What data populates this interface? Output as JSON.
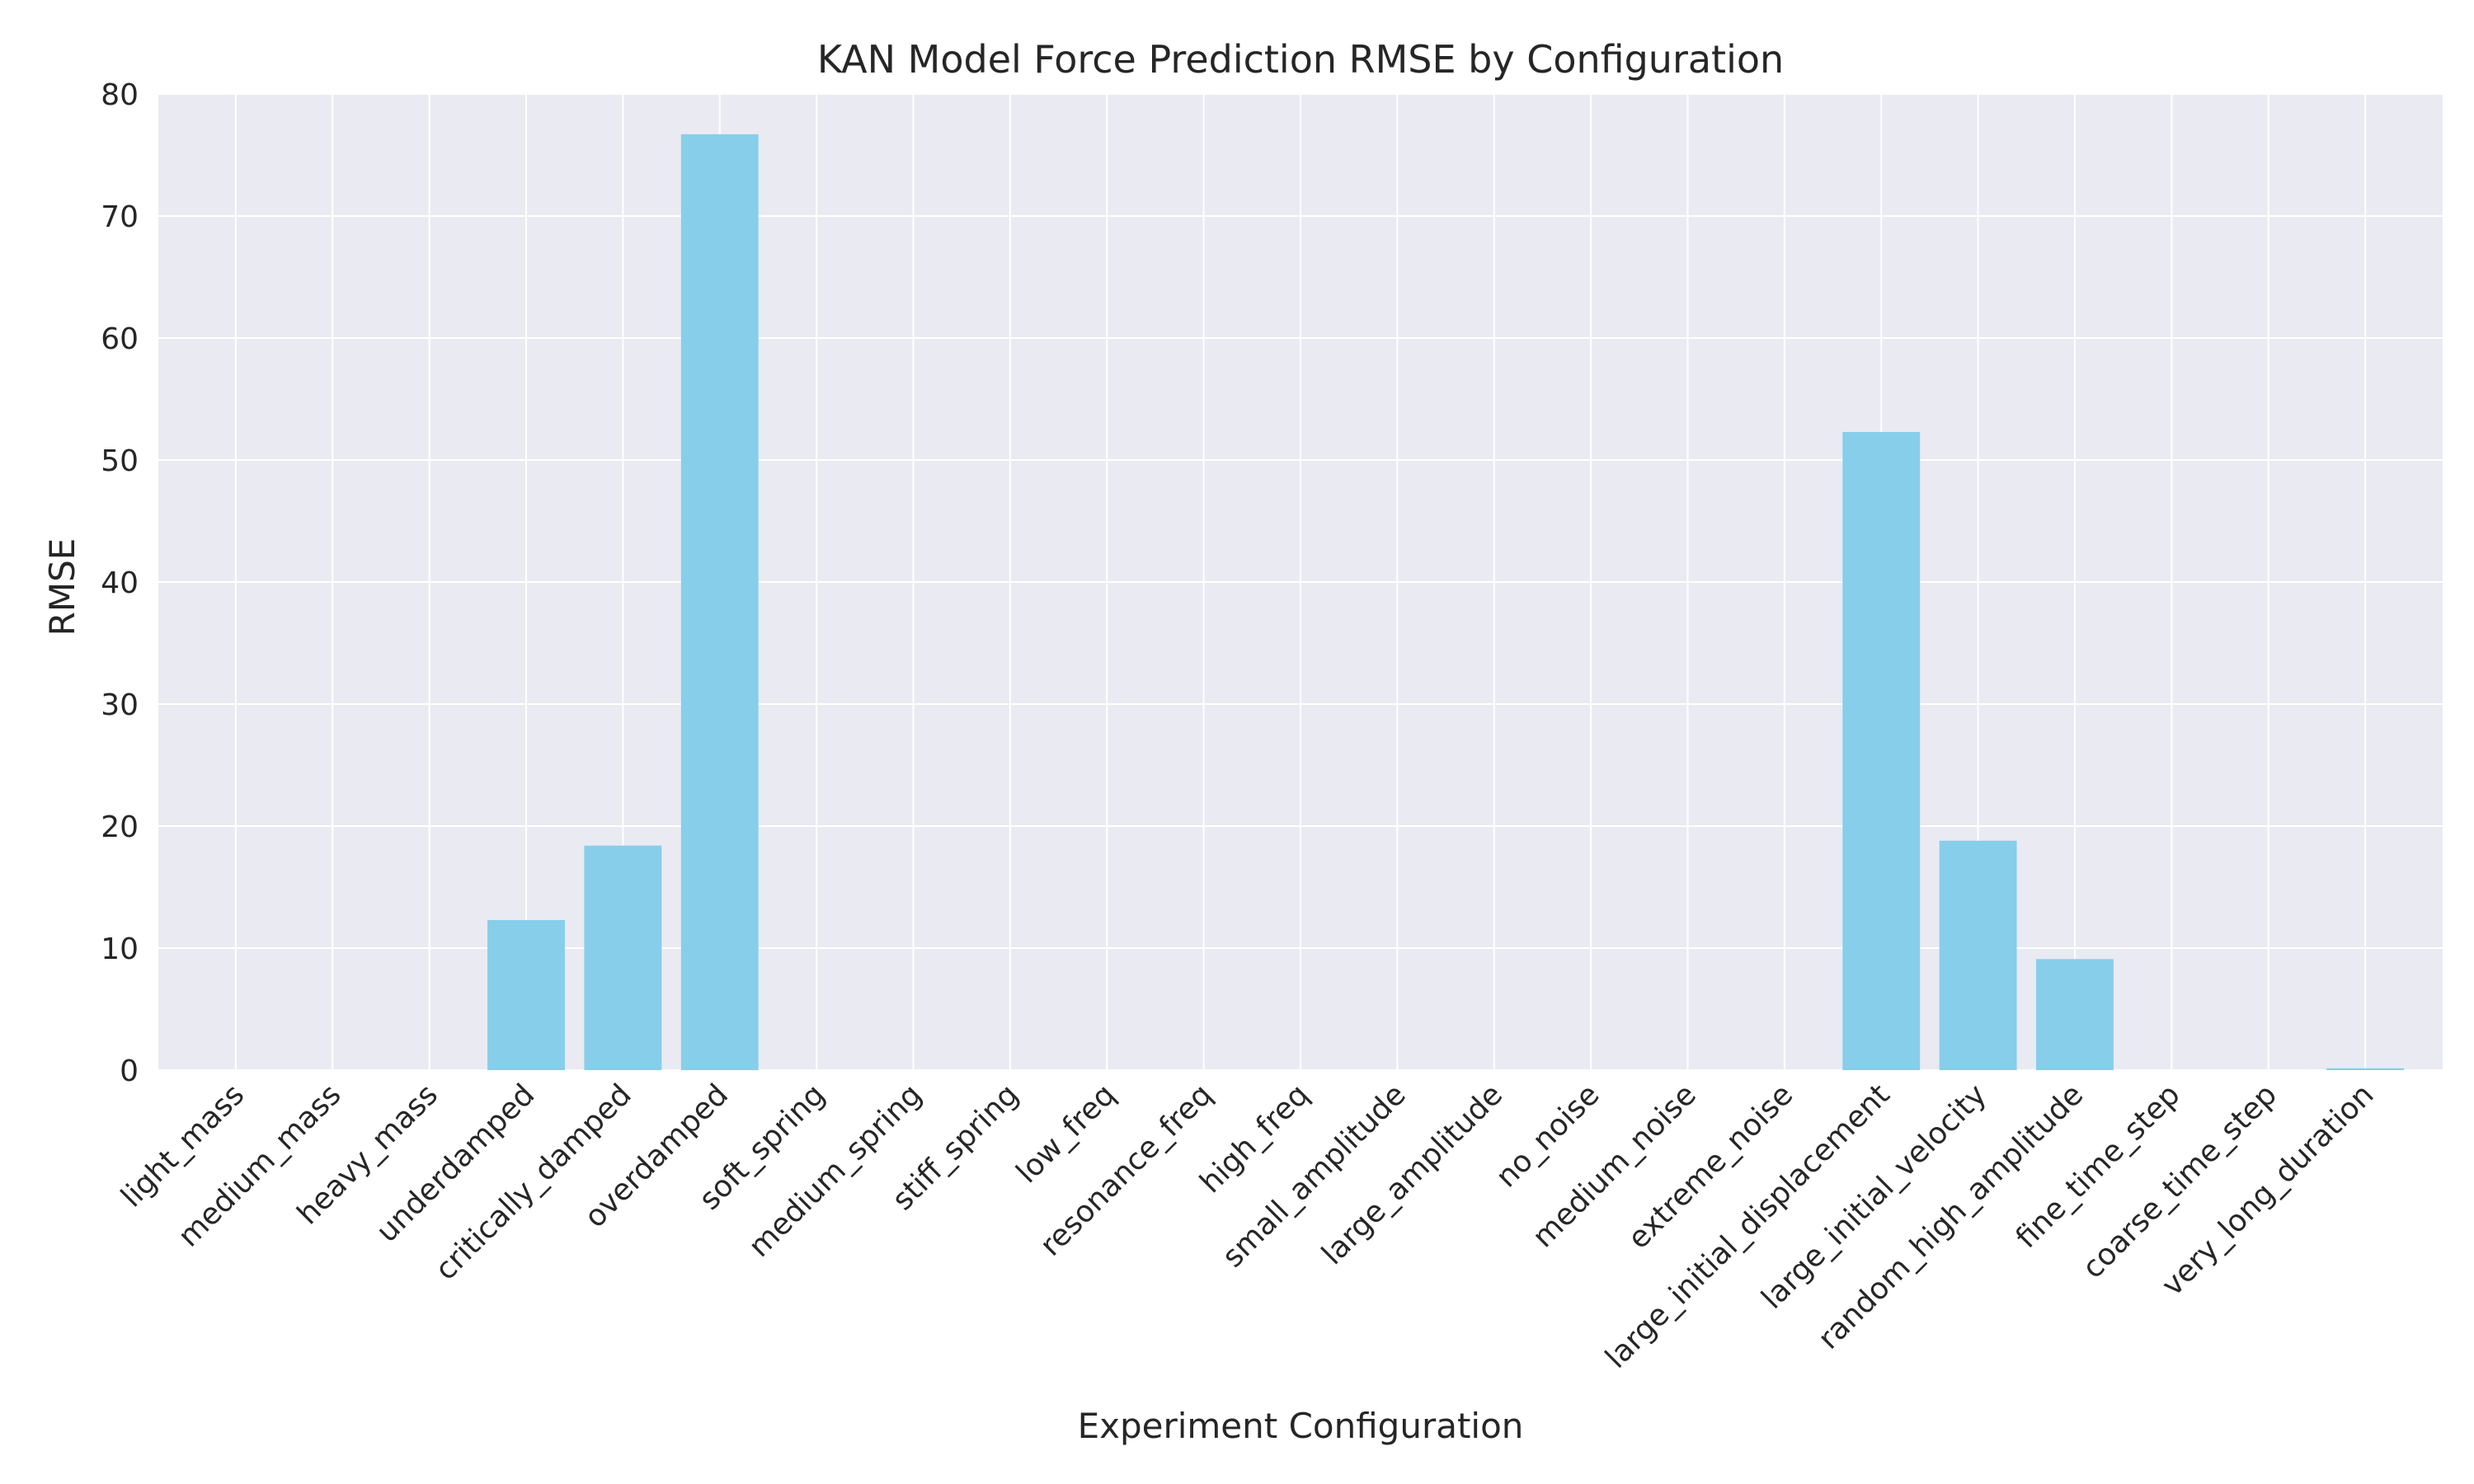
{
  "chart_data": {
    "type": "bar",
    "title": "KAN Model Force Prediction RMSE by Configuration",
    "xlabel": "Experiment Configuration",
    "ylabel": "RMSE",
    "ylim": [
      0,
      80
    ],
    "yticks": [
      0,
      10,
      20,
      30,
      40,
      50,
      60,
      70,
      80
    ],
    "grid": true,
    "legend": "none",
    "colors": {
      "bar": "#87ceeb",
      "plot_background": "#eaeaf2",
      "grid": "#ffffff",
      "text": "#262626"
    },
    "categories": [
      "light_mass",
      "medium_mass",
      "heavy_mass",
      "underdamped",
      "critically_damped",
      "overdamped",
      "soft_spring",
      "medium_spring",
      "stiff_spring",
      "low_freq",
      "resonance_freq",
      "high_freq",
      "small_amplitude",
      "large_amplitude",
      "no_noise",
      "medium_noise",
      "extreme_noise",
      "large_initial_displacement",
      "large_initial_velocity",
      "random_high_amplitude",
      "fine_time_step",
      "coarse_time_step",
      "very_long_duration"
    ],
    "values": [
      0,
      0,
      0,
      12.3,
      18.4,
      76.7,
      0,
      0,
      0,
      0,
      0,
      0,
      0,
      0,
      0,
      0,
      0,
      52.3,
      18.8,
      9.1,
      0,
      0,
      0.15
    ]
  }
}
